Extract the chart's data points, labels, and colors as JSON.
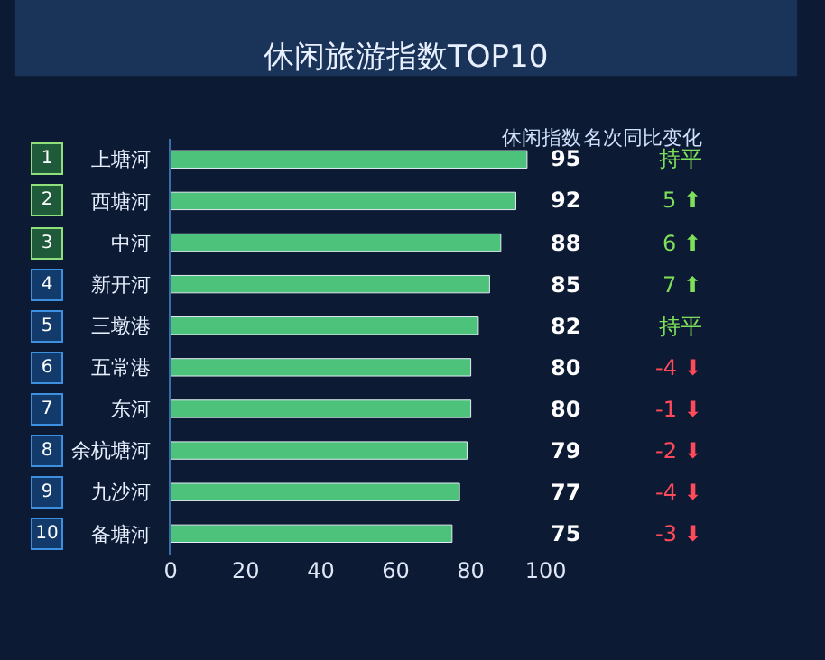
{
  "chart_data": {
    "type": "bar",
    "orientation": "horizontal",
    "title": "休闲旅游指数TOP10",
    "categories": [
      "上塘河",
      "西塘河",
      "中河",
      "新开河",
      "三墩港",
      "五常港",
      "东河",
      "余杭塘河",
      "九沙河",
      "备塘河"
    ],
    "values": [
      95,
      92,
      88,
      85,
      82,
      80,
      80,
      79,
      77,
      75
    ],
    "color": "#4cc27a",
    "xlim": [
      0,
      100
    ],
    "xticks": [
      0,
      20,
      40,
      60,
      80,
      100
    ],
    "grid": false,
    "legend": false,
    "data_labels": true,
    "annotations": [
      "休闲指数",
      "名次同比变化",
      "1",
      "2",
      "3",
      "4",
      "5",
      "6",
      "7",
      "8",
      "9",
      "10",
      "持平",
      "5 ⬆",
      "6 ⬆",
      "7 ⬆",
      "持平",
      "-4 ⬇",
      "-1 ⬇",
      "-2 ⬇",
      "-4 ⬇",
      "-3 ⬇"
    ]
  }
}
